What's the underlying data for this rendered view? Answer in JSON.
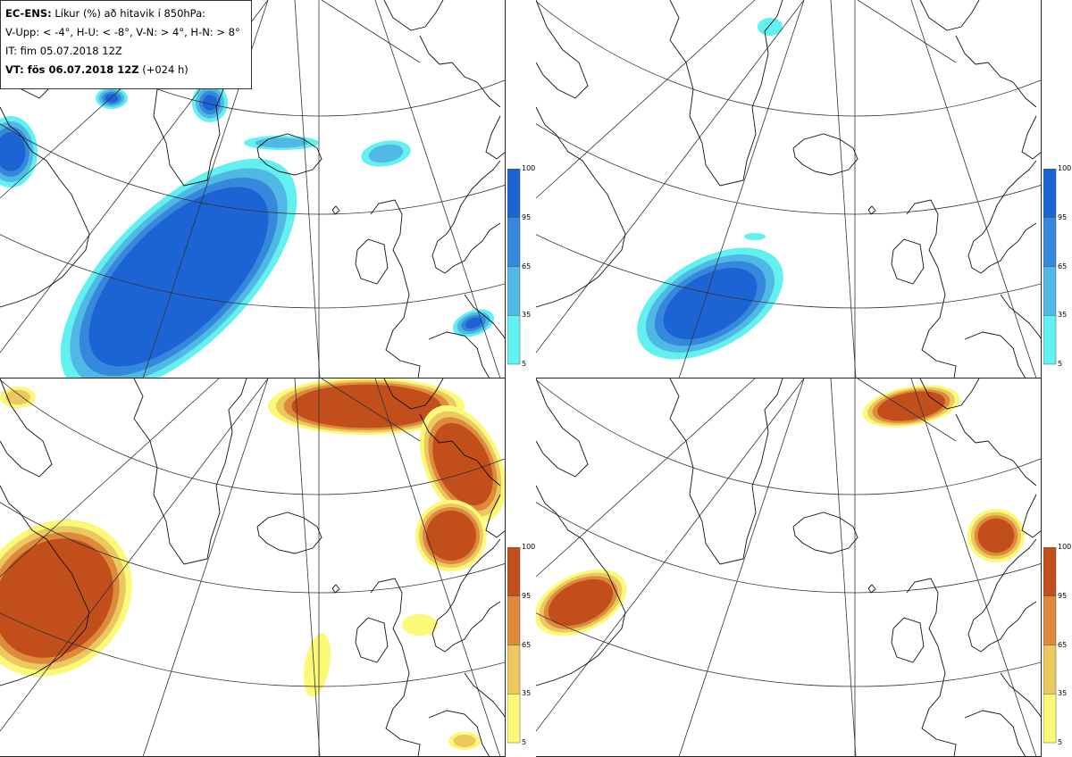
{
  "header": {
    "model_prefix": "EC-ENS:",
    "title_rest": "Líkur (%) að hitavik í 850hPa:",
    "criteria": "V-Upp: < -4°, H-U: < -8°, V-N: > 4°, H-N: > 8°",
    "init_time": "IT: fim 05.07.2018 12Z",
    "valid_prefix": "VT: fös 06.07.2018 12Z",
    "lead_time": "(+024 h)"
  },
  "colorbars": {
    "ticks": [
      "100",
      "95",
      "65",
      "35",
      "5"
    ],
    "cold_colors": [
      "#1c64d4",
      "#3688dc",
      "#50b8e4",
      "#62f0f0"
    ],
    "warm_colors": [
      "#c24e1c",
      "#de8a3a",
      "#ecc860",
      "#fbfa78"
    ]
  },
  "panels": [
    {
      "id": "V-Upp",
      "scheme": "cold"
    },
    {
      "id": "H-U",
      "scheme": "cold"
    },
    {
      "id": "V-N",
      "scheme": "warm"
    },
    {
      "id": "H-N",
      "scheme": "warm"
    }
  ]
}
